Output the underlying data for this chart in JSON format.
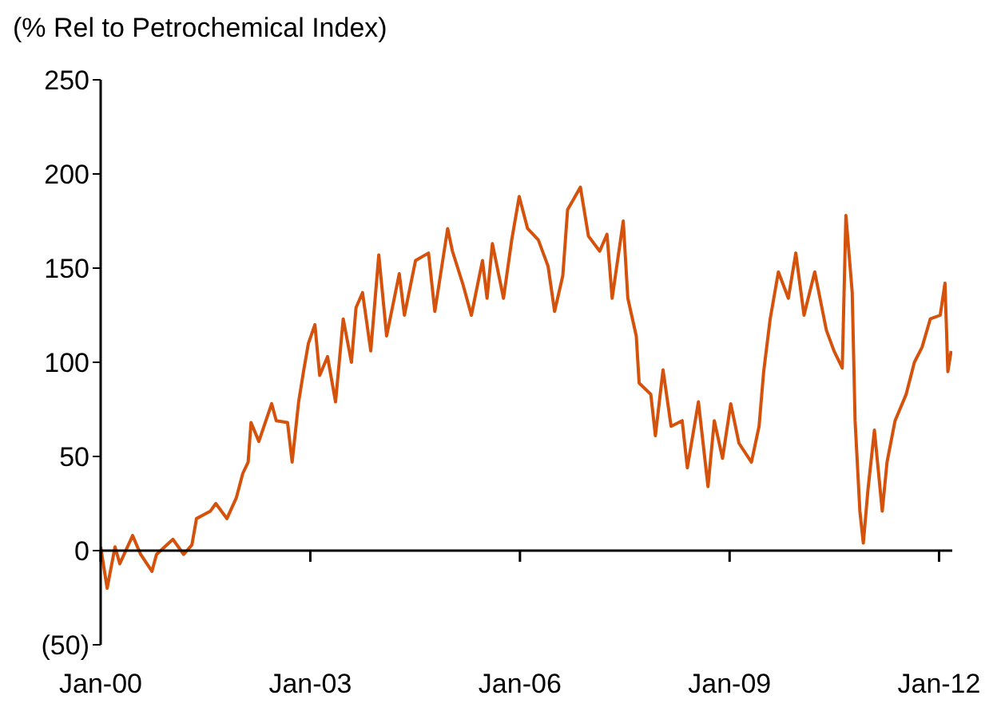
{
  "chart_data": {
    "type": "line",
    "ylabel": "(% Rel to Petrochemical Index)",
    "x": [
      "2000-01-01",
      "2000-02-04",
      "2000-03-16",
      "2000-04-10",
      "2000-06-16",
      "2000-07-28",
      "2000-09-25",
      "2000-10-19",
      "2001-01-13",
      "2001-03-10",
      "2001-04-22",
      "2001-05-16",
      "2001-07-28",
      "2001-08-25",
      "2001-10-22",
      "2001-12-10",
      "2002-01-13",
      "2002-02-10",
      "2002-02-25",
      "2002-04-07",
      "2002-06-13",
      "2002-07-07",
      "2002-09-04",
      "2002-09-28",
      "2002-11-01",
      "2002-11-28",
      "2002-12-22",
      "2003-01-25",
      "2003-02-19",
      "2003-04-01",
      "2003-05-13",
      "2003-06-22",
      "2003-08-04",
      "2003-08-28",
      "2003-10-01",
      "2003-11-13",
      "2003-12-25",
      "2004-02-04",
      "2004-04-10",
      "2004-05-07",
      "2004-07-04",
      "2004-09-10",
      "2004-10-13",
      "2004-12-19",
      "2005-01-13",
      "2005-03-10",
      "2005-04-22",
      "2005-06-19",
      "2005-07-13",
      "2005-08-10",
      "2005-10-07",
      "2005-11-19",
      "2005-12-28",
      "2006-02-10",
      "2006-04-07",
      "2006-05-28",
      "2006-07-01",
      "2006-08-13",
      "2006-09-07",
      "2006-11-13",
      "2006-12-25",
      "2007-02-22",
      "2007-04-01",
      "2007-04-28",
      "2007-06-25",
      "2007-07-19",
      "2007-09-01",
      "2007-09-16",
      "2007-11-16",
      "2007-12-10",
      "2008-01-19",
      "2008-03-01",
      "2008-04-28",
      "2008-05-25",
      "2008-07-22",
      "2008-09-10",
      "2008-10-13",
      "2008-11-25",
      "2009-01-07",
      "2009-02-19",
      "2009-04-25",
      "2009-06-04",
      "2009-06-28",
      "2009-08-01",
      "2009-09-13",
      "2009-11-04",
      "2009-12-13",
      "2010-01-25",
      "2010-03-22",
      "2010-05-22",
      "2010-07-01",
      "2010-08-13",
      "2010-09-01",
      "2010-10-04",
      "2010-10-19",
      "2010-11-13",
      "2010-12-01",
      "2010-12-25",
      "2011-01-28",
      "2011-03-10",
      "2011-04-04",
      "2011-05-16",
      "2011-07-13",
      "2011-08-25",
      "2011-10-04",
      "2011-11-16",
      "2012-01-07",
      "2012-02-01",
      "2012-02-16",
      "2012-03-04"
    ],
    "series": [
      {
        "color": "#d4520c",
        "values": [
          2,
          -20,
          2,
          -7,
          8,
          -2,
          -11,
          -2,
          6,
          -2,
          3,
          17,
          21,
          25,
          17,
          28,
          41,
          47,
          68,
          58,
          78,
          69,
          68,
          47,
          79,
          96,
          110,
          120,
          93,
          103,
          79,
          123,
          100,
          129,
          137,
          106,
          157,
          114,
          147,
          125,
          154,
          158,
          127,
          171,
          159,
          141,
          125,
          154,
          134,
          163,
          134,
          165,
          188,
          171,
          165,
          151,
          127,
          146,
          181,
          193,
          167,
          159,
          168,
          134,
          175,
          134,
          114,
          89,
          83,
          61,
          96,
          66,
          69,
          44,
          79,
          34,
          69,
          49,
          78,
          57,
          47,
          66,
          95,
          123,
          148,
          134,
          158,
          125,
          148,
          117,
          106,
          97,
          178,
          137,
          69,
          21,
          4,
          32,
          64,
          21,
          47,
          69,
          83,
          100,
          108,
          123,
          125,
          142,
          95,
          106
        ]
      }
    ],
    "xlim": [
      "2000-01-01",
      "2012-03-10"
    ],
    "xticks": [
      {
        "value": "2000-01-01",
        "label": "Jan-00"
      },
      {
        "value": "2003-01-01",
        "label": "Jan-03"
      },
      {
        "value": "2006-01-01",
        "label": "Jan-06"
      },
      {
        "value": "2009-01-01",
        "label": "Jan-09"
      },
      {
        "value": "2012-01-01",
        "label": "Jan-12"
      }
    ],
    "ylim": [
      -50,
      250
    ],
    "yticks": [
      {
        "value": -50,
        "label": "(50)"
      },
      0,
      50,
      100,
      150,
      200,
      250
    ],
    "legend": false,
    "marker": "none",
    "line_style": "solid"
  }
}
